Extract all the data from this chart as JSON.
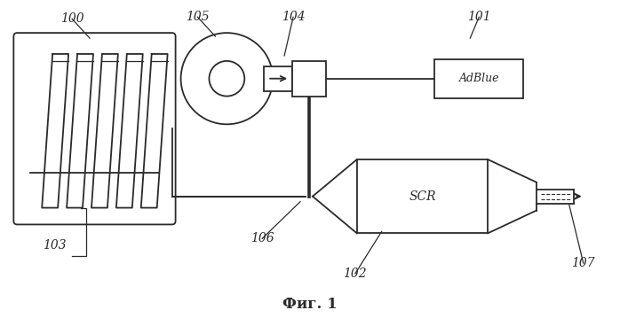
{
  "title": "Фиг. 1",
  "title_fontsize": 12,
  "bg_color": "#ffffff",
  "line_color": "#2a2a2a",
  "label_color": "#2a2a2a",
  "label_fontsize": 10,
  "figsize": [
    6.98,
    3.59
  ],
  "dpi": 100
}
